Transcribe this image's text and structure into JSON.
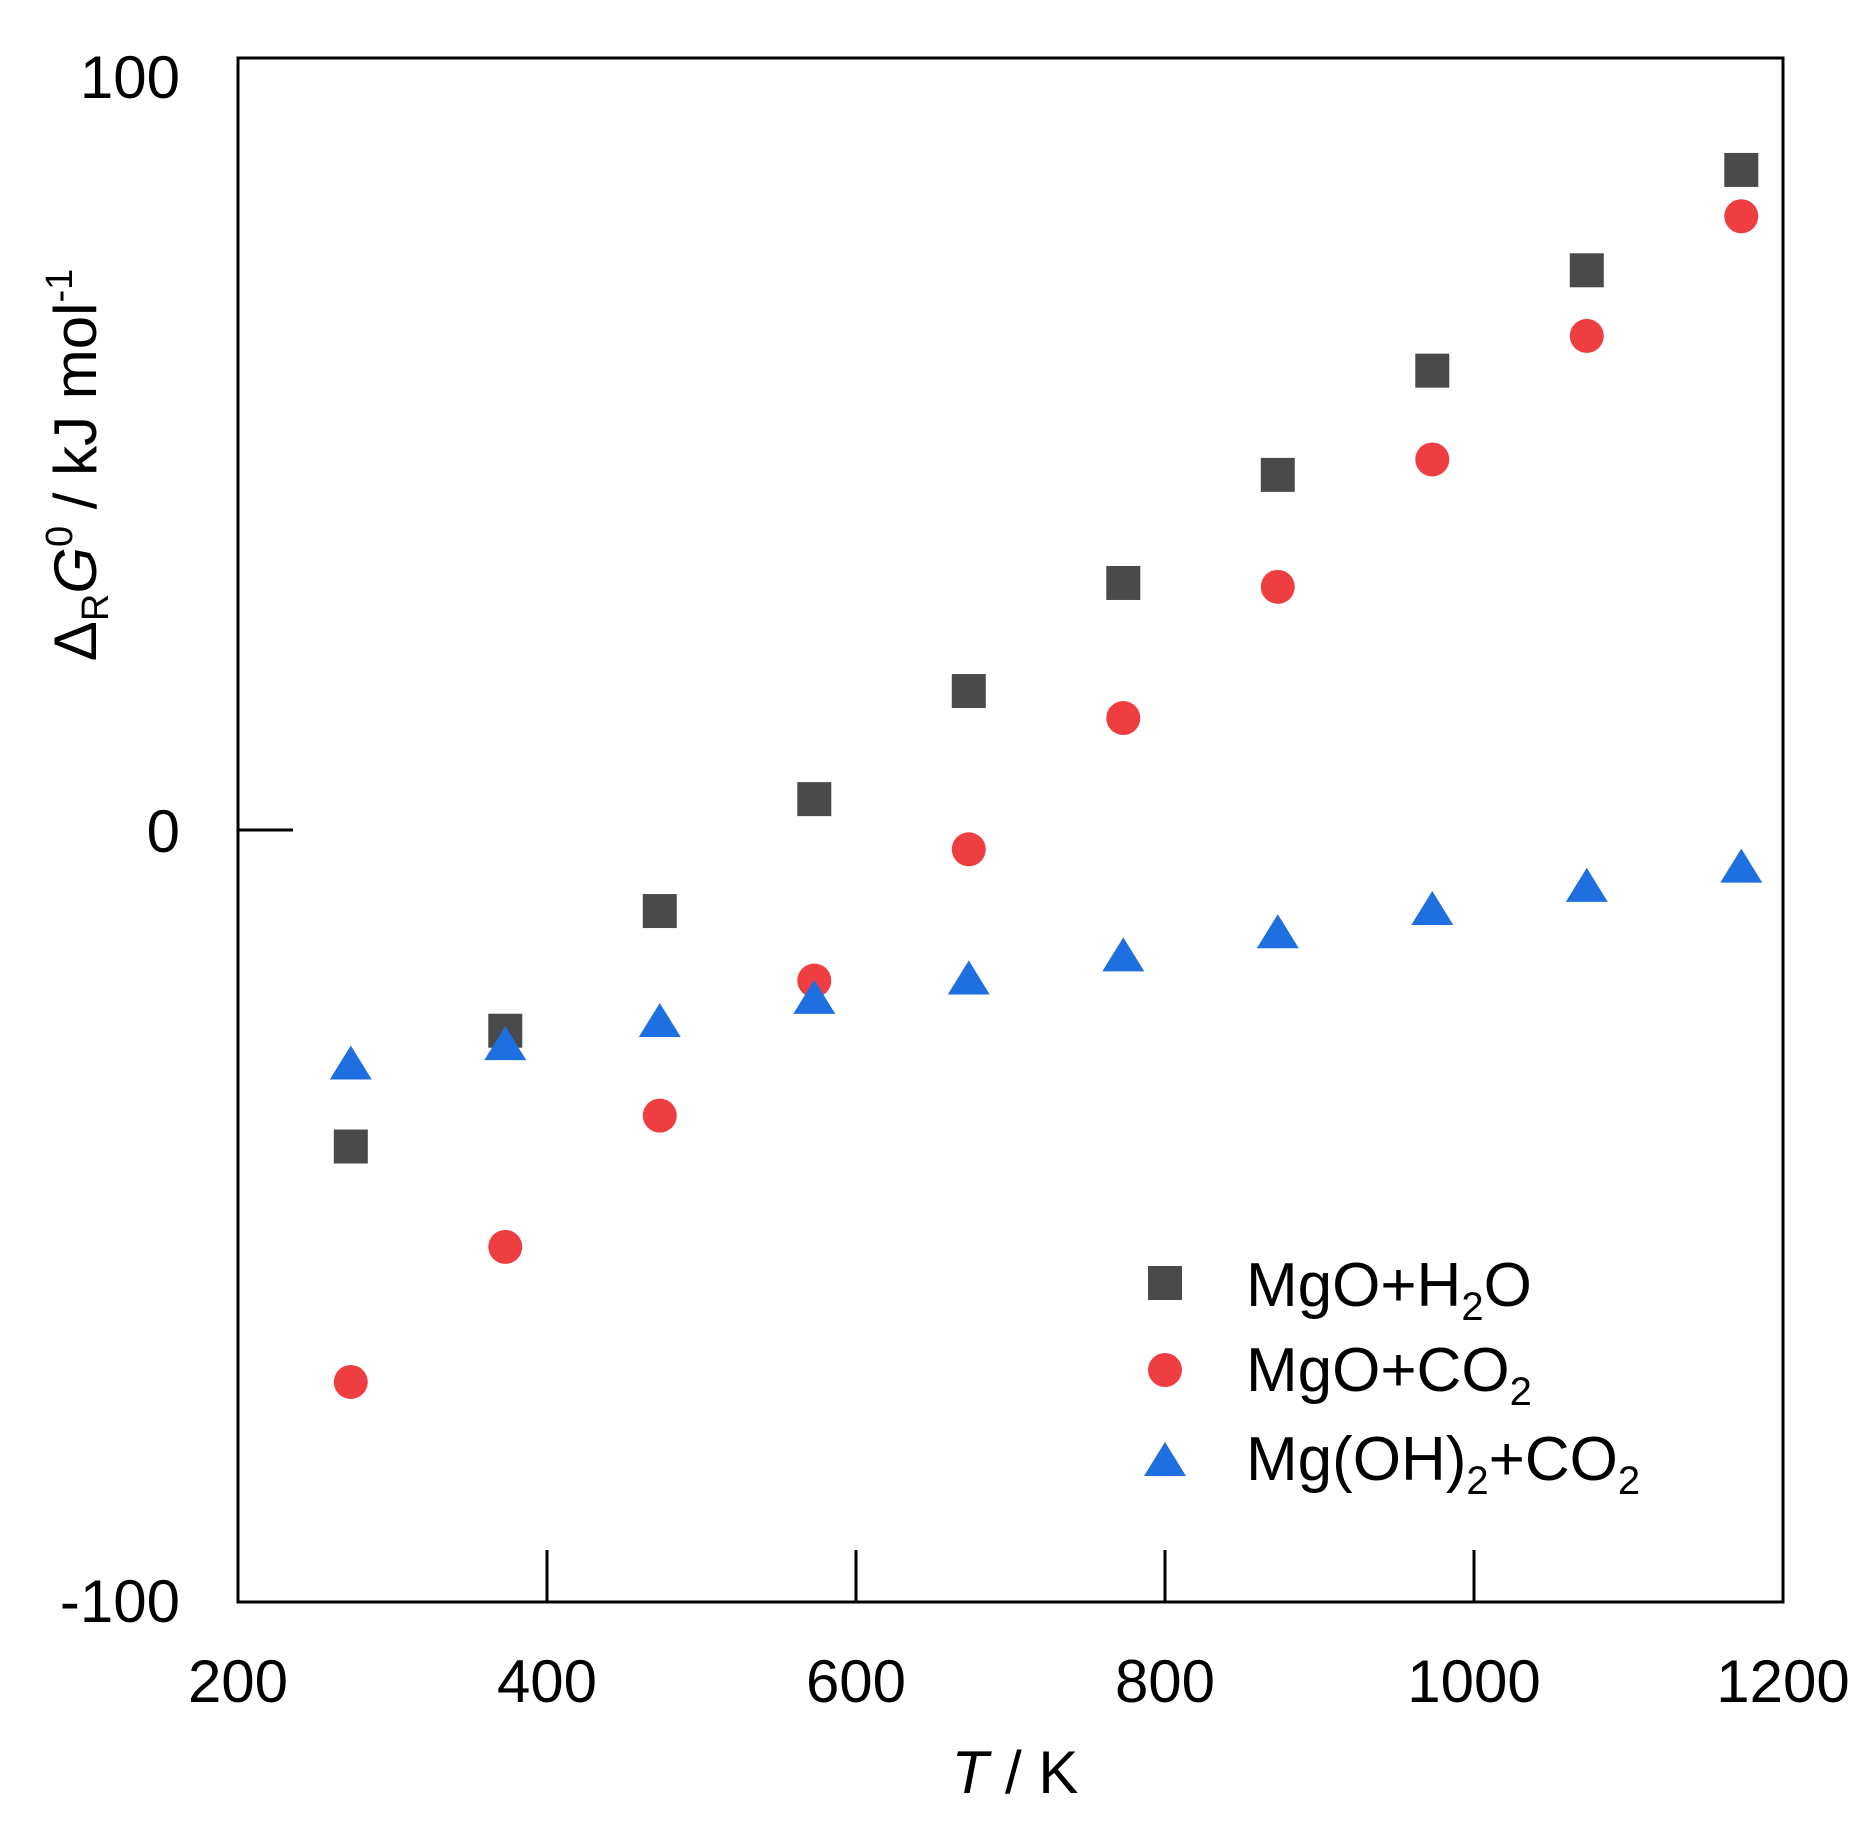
{
  "chart_data": {
    "type": "scatter",
    "title": "",
    "xlabel": {
      "italic": "T",
      "rest": " / K"
    },
    "ylabel": {
      "delta": "Δ",
      "sub": "R",
      "g": "G",
      "sup0": "0",
      "rest": " / kJ mol",
      "supneg1": "-1"
    },
    "xlim": [
      200,
      1200
    ],
    "ylim": [
      -100,
      100
    ],
    "xticks": [
      200,
      400,
      600,
      800,
      1000,
      1200
    ],
    "xtick_labels": [
      "200",
      "400",
      "600",
      "800",
      "1000",
      "1200"
    ],
    "yticks": [
      -100,
      0,
      100
    ],
    "ytick_labels": [
      "-100",
      "0",
      "100"
    ],
    "legend_position": "bottom-right",
    "series": [
      {
        "name": "MgO+H2O",
        "legend": {
          "pre": "MgO+H",
          "sub": "2",
          "post": "O",
          "sub2": "",
          "post2": ""
        },
        "marker": "square",
        "color": "#4a4a4a",
        "x": [
          273,
          373,
          473,
          573,
          673,
          773,
          873,
          973,
          1073,
          1173
        ],
        "y": [
          -41,
          -26,
          -10.5,
          4,
          18,
          32,
          46,
          59.5,
          72.5,
          85.5
        ]
      },
      {
        "name": "MgO+CO2",
        "legend": {
          "pre": "MgO+CO",
          "sub": "2",
          "post": "",
          "sub2": "",
          "post2": ""
        },
        "marker": "circle",
        "color": "#ef3e42",
        "x": [
          273,
          373,
          473,
          573,
          673,
          773,
          873,
          973,
          1073,
          1173
        ],
        "y": [
          -71.5,
          -54,
          -37,
          -19.5,
          -2.5,
          14.5,
          31.5,
          48,
          64,
          79.5
        ]
      },
      {
        "name": "Mg(OH)2+CO2",
        "legend": {
          "pre": "Mg(OH)",
          "sub": "2",
          "post": "+CO",
          "sub2": "2",
          "post2": ""
        },
        "marker": "triangle",
        "color": "#1e6fe0",
        "x": [
          273,
          373,
          473,
          573,
          673,
          773,
          873,
          973,
          1073,
          1173
        ],
        "y": [
          -30.5,
          -28,
          -25,
          -22,
          -19.5,
          -16.5,
          -13.5,
          -10.5,
          -7.5,
          -5
        ]
      }
    ]
  }
}
